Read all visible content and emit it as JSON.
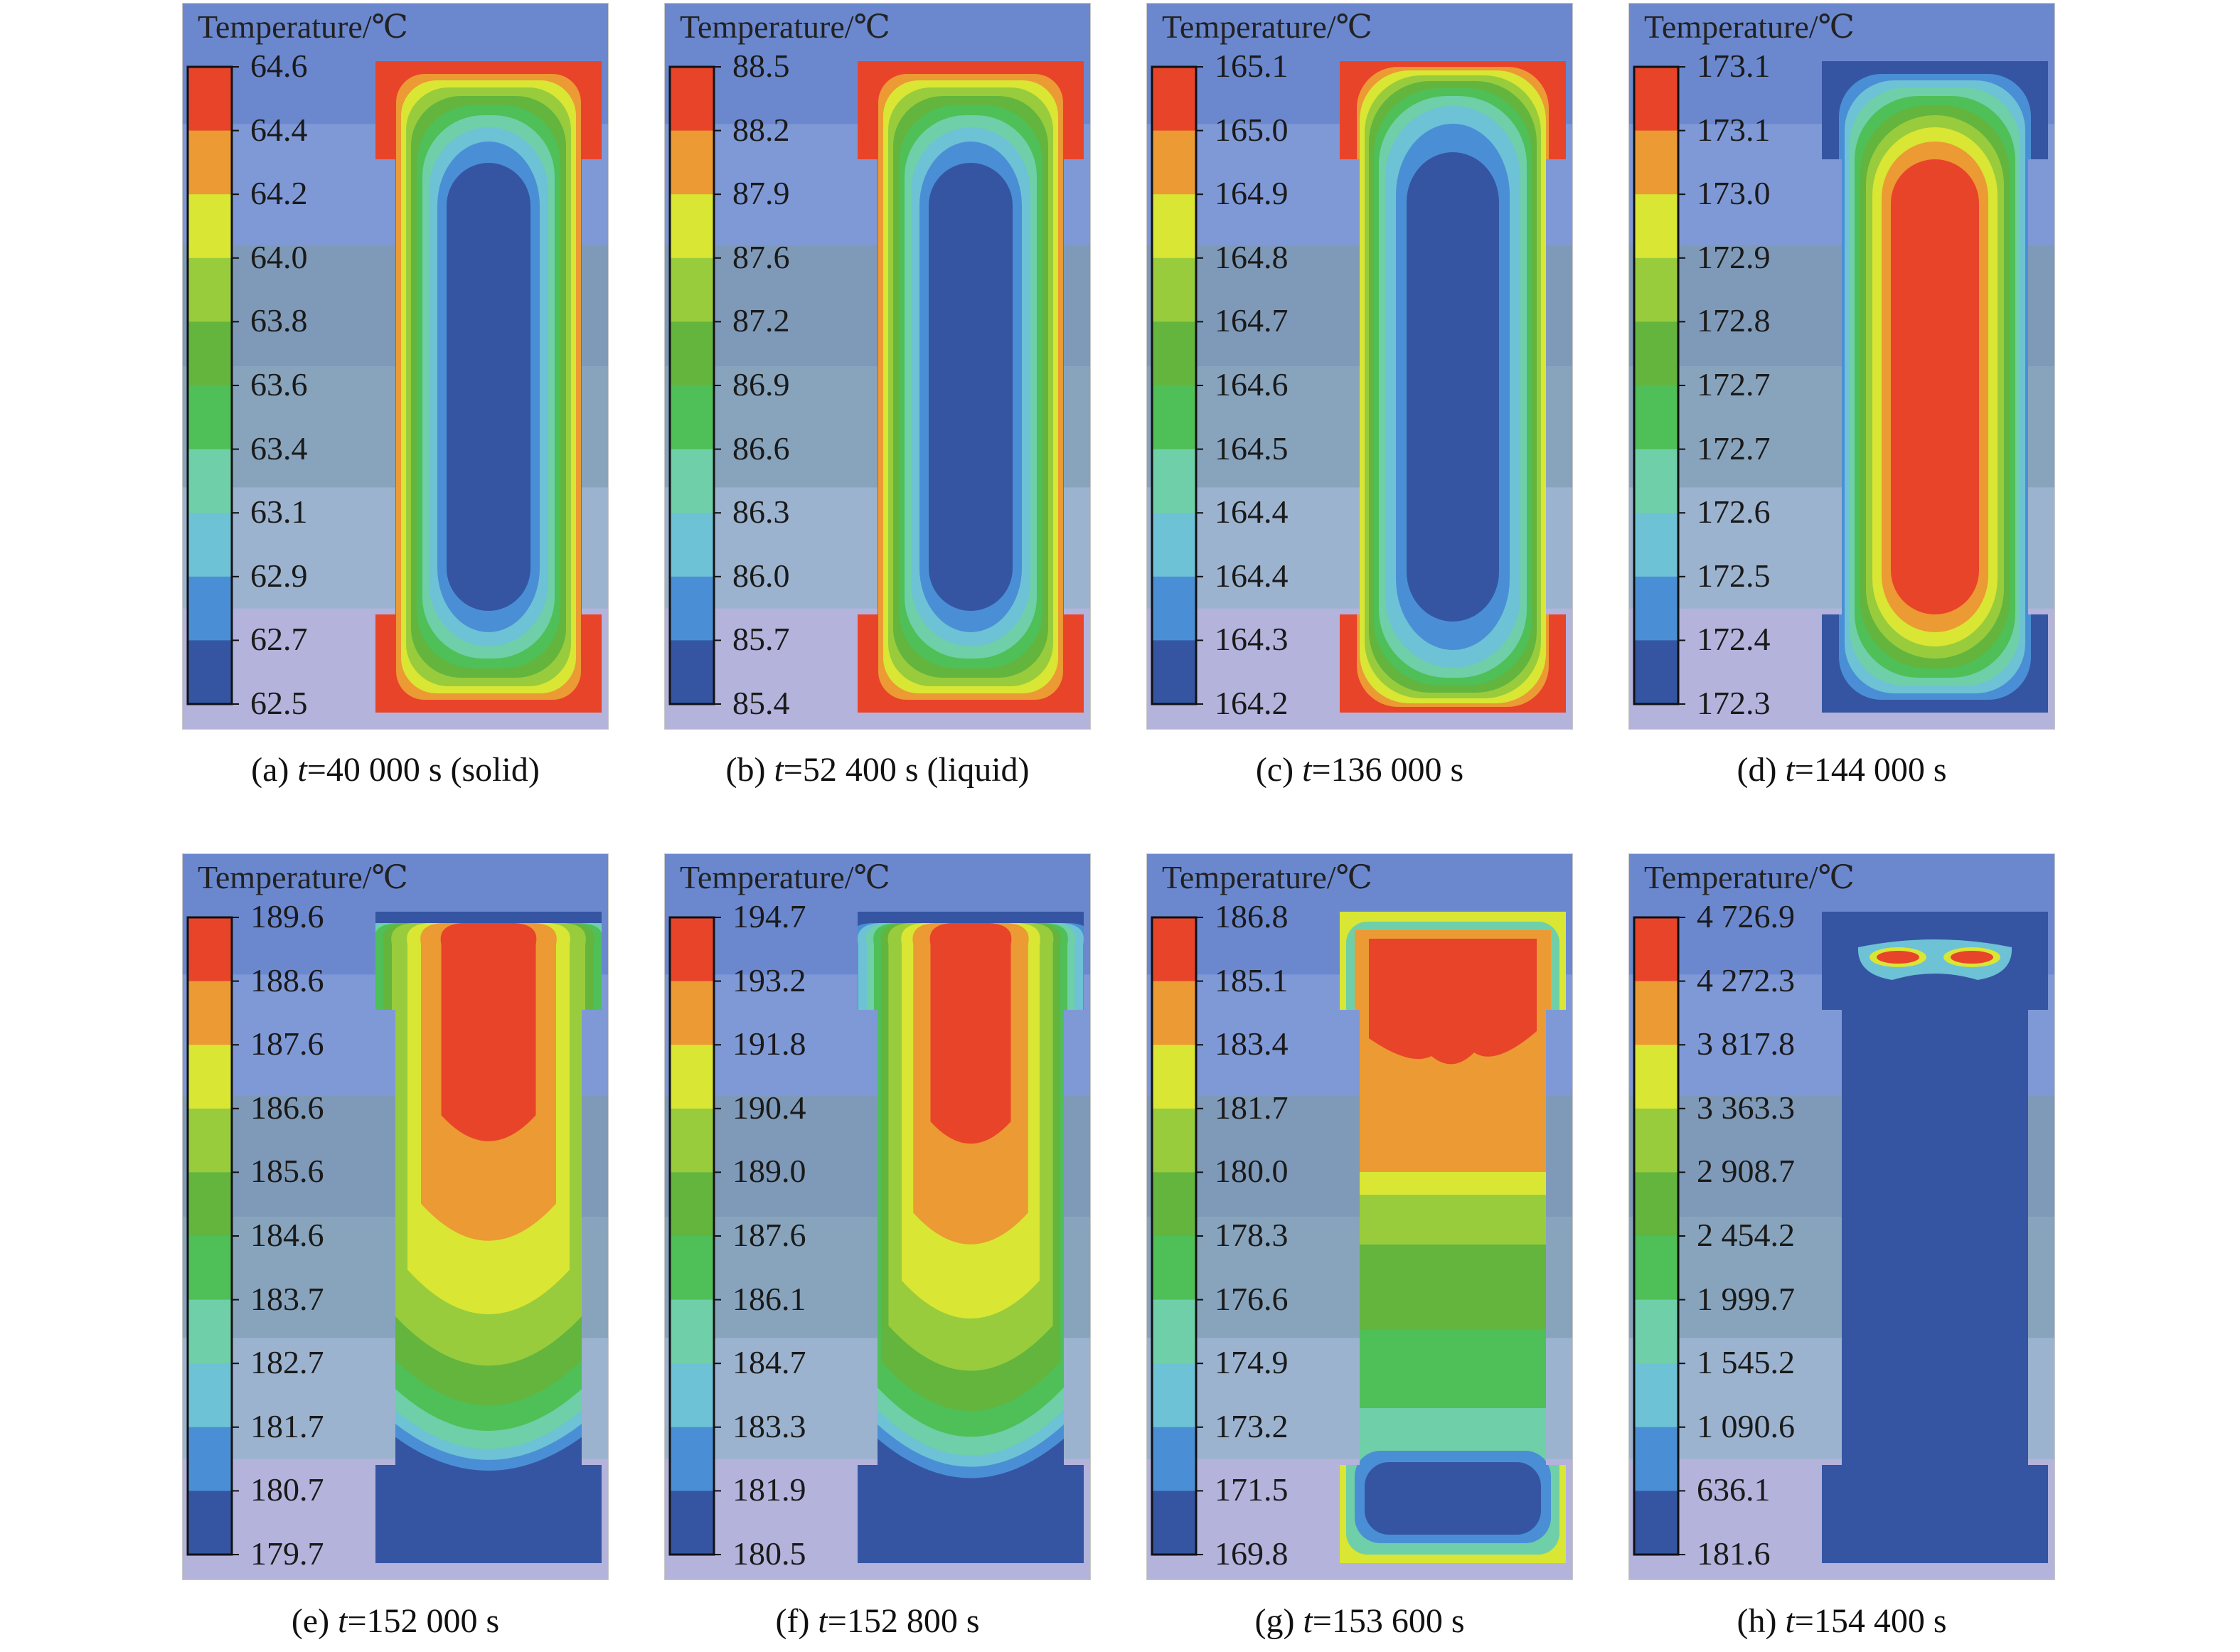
{
  "legend_title": "Temperature/℃",
  "palette": [
    "#e8442a",
    "#ec9a33",
    "#d9e634",
    "#98cc3c",
    "#63b53e",
    "#4fbf57",
    "#6fcfa8",
    "#6dc2d5",
    "#4a8fd5",
    "#3555a3"
  ],
  "background_bands": [
    "#6b88cf",
    "#7f99d7",
    "#7f9ab8",
    "#88a4bd",
    "#9bb3cf",
    "#b3b3dc"
  ],
  "panels": [
    {
      "caption_pre": "(a) ",
      "caption_t": "t",
      "caption_post": "=40 000 s (solid)",
      "ticks": [
        "64.6",
        "64.4",
        "64.2",
        "64.0",
        "63.8",
        "63.6",
        "63.4",
        "63.1",
        "62.9",
        "62.7",
        "62.5"
      ],
      "field": "ring-hot-outside"
    },
    {
      "caption_pre": "(b) ",
      "caption_t": "t",
      "caption_post": "=52 400 s (liquid)",
      "ticks": [
        "88.5",
        "88.2",
        "87.9",
        "87.6",
        "87.2",
        "86.9",
        "86.6",
        "86.3",
        "86.0",
        "85.7",
        "85.4"
      ],
      "field": "ring-hot-outside"
    },
    {
      "caption_pre": "(c) ",
      "caption_t": "t",
      "caption_post": "=136 000 s",
      "ticks": [
        "165.1",
        "165.0",
        "164.9",
        "164.8",
        "164.7",
        "164.6",
        "164.5",
        "164.4",
        "164.4",
        "164.3",
        "164.2"
      ],
      "field": "ring-hot-outside-wide"
    },
    {
      "caption_pre": "(d) ",
      "caption_t": "t",
      "caption_post": "=144 000 s",
      "ticks": [
        "173.1",
        "173.1",
        "173.0",
        "172.9",
        "172.8",
        "172.7",
        "172.7",
        "172.6",
        "172.5",
        "172.4",
        "172.3"
      ],
      "field": "ring-hot-inside"
    },
    {
      "caption_pre": "(e) ",
      "caption_t": "t",
      "caption_post": "=152 000 s",
      "ticks": [
        "189.6",
        "188.6",
        "187.6",
        "186.6",
        "185.6",
        "184.6",
        "183.7",
        "182.7",
        "181.7",
        "180.7",
        "179.7"
      ],
      "field": "plume-top"
    },
    {
      "caption_pre": "(f) ",
      "caption_t": "t",
      "caption_post": "=152 800 s",
      "ticks": [
        "194.7",
        "193.2",
        "191.8",
        "190.4",
        "189.0",
        "187.6",
        "186.1",
        "184.7",
        "183.3",
        "181.9",
        "180.5"
      ],
      "field": "plume-top-narrow"
    },
    {
      "caption_pre": "(g) ",
      "caption_t": "t",
      "caption_post": "=153 600 s",
      "ticks": [
        "186.8",
        "185.1",
        "183.4",
        "181.7",
        "180.0",
        "178.3",
        "176.6",
        "174.9",
        "173.2",
        "171.5",
        "169.8"
      ],
      "field": "layered"
    },
    {
      "caption_pre": "(h) ",
      "caption_t": "t",
      "caption_post": "=154 400 s",
      "ticks": [
        "4 726.9",
        "4 272.3",
        "3 817.8",
        "3 363.3",
        "2 908.7",
        "2 454.2",
        "1 999.7",
        "1 545.2",
        "1 090.6",
        "636.1",
        "181.6"
      ],
      "field": "hotspot-top"
    }
  ]
}
